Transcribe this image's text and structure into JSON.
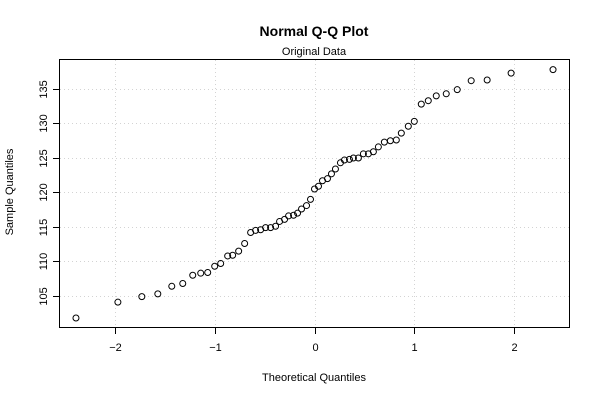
{
  "chart_data": {
    "type": "scatter",
    "title": "Normal Q-Q Plot",
    "subtitle": "Original Data",
    "xlabel": "Theoretical Quantiles",
    "ylabel": "Sample Quantiles",
    "xlim": [
      -2.55,
      2.55
    ],
    "ylim": [
      100.5,
      139.2
    ],
    "x_ticks": [
      -2,
      -1,
      0,
      1,
      2
    ],
    "y_ticks": [
      105,
      110,
      115,
      120,
      125,
      130,
      135
    ],
    "grid": true,
    "points": [
      {
        "x": -2.39,
        "y": 101.8
      },
      {
        "x": -1.97,
        "y": 104.1
      },
      {
        "x": -1.73,
        "y": 104.9
      },
      {
        "x": -1.57,
        "y": 105.3
      },
      {
        "x": -1.43,
        "y": 106.4
      },
      {
        "x": -1.32,
        "y": 106.8
      },
      {
        "x": -1.22,
        "y": 108.0
      },
      {
        "x": -1.14,
        "y": 108.3
      },
      {
        "x": -1.07,
        "y": 108.4
      },
      {
        "x": -1.0,
        "y": 109.3
      },
      {
        "x": -0.94,
        "y": 109.7
      },
      {
        "x": -0.87,
        "y": 110.8
      },
      {
        "x": -0.82,
        "y": 110.9
      },
      {
        "x": -0.76,
        "y": 111.5
      },
      {
        "x": -0.7,
        "y": 112.6
      },
      {
        "x": -0.64,
        "y": 114.2
      },
      {
        "x": -0.59,
        "y": 114.5
      },
      {
        "x": -0.54,
        "y": 114.6
      },
      {
        "x": -0.49,
        "y": 114.9
      },
      {
        "x": -0.44,
        "y": 114.9
      },
      {
        "x": -0.39,
        "y": 115.1
      },
      {
        "x": -0.35,
        "y": 115.8
      },
      {
        "x": -0.3,
        "y": 116.1
      },
      {
        "x": -0.26,
        "y": 116.6
      },
      {
        "x": -0.21,
        "y": 116.7
      },
      {
        "x": -0.17,
        "y": 117.0
      },
      {
        "x": -0.13,
        "y": 117.6
      },
      {
        "x": -0.08,
        "y": 118.1
      },
      {
        "x": -0.04,
        "y": 119.0
      },
      {
        "x": 0.0,
        "y": 120.5
      },
      {
        "x": 0.04,
        "y": 120.9
      },
      {
        "x": 0.08,
        "y": 121.7
      },
      {
        "x": 0.13,
        "y": 122.0
      },
      {
        "x": 0.17,
        "y": 122.7
      },
      {
        "x": 0.21,
        "y": 123.4
      },
      {
        "x": 0.26,
        "y": 124.3
      },
      {
        "x": 0.3,
        "y": 124.7
      },
      {
        "x": 0.35,
        "y": 124.8
      },
      {
        "x": 0.39,
        "y": 125.0
      },
      {
        "x": 0.44,
        "y": 125.0
      },
      {
        "x": 0.49,
        "y": 125.6
      },
      {
        "x": 0.54,
        "y": 125.6
      },
      {
        "x": 0.59,
        "y": 125.9
      },
      {
        "x": 0.64,
        "y": 126.6
      },
      {
        "x": 0.7,
        "y": 127.3
      },
      {
        "x": 0.76,
        "y": 127.5
      },
      {
        "x": 0.82,
        "y": 127.6
      },
      {
        "x": 0.87,
        "y": 128.6
      },
      {
        "x": 0.94,
        "y": 129.6
      },
      {
        "x": 1.0,
        "y": 130.3
      },
      {
        "x": 1.07,
        "y": 132.8
      },
      {
        "x": 1.14,
        "y": 133.3
      },
      {
        "x": 1.22,
        "y": 134.0
      },
      {
        "x": 1.32,
        "y": 134.3
      },
      {
        "x": 1.43,
        "y": 134.9
      },
      {
        "x": 1.57,
        "y": 136.2
      },
      {
        "x": 1.73,
        "y": 136.3
      },
      {
        "x": 1.97,
        "y": 137.3
      },
      {
        "x": 2.39,
        "y": 137.8
      }
    ]
  }
}
